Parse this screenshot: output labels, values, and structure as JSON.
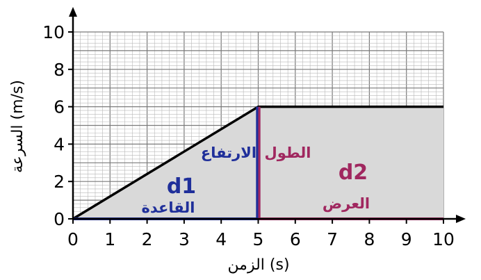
{
  "chart_data": {
    "type": "area",
    "xlabel": "الزمن (s)",
    "ylabel": "السرعة (m/s)",
    "xlim": [
      0,
      10
    ],
    "ylim": [
      0,
      10
    ],
    "x_ticks": [
      "0",
      "1",
      "2",
      "3",
      "4",
      "5",
      "6",
      "7",
      "8",
      "9",
      "10"
    ],
    "y_ticks": [
      "0",
      "2",
      "4",
      "6",
      "8",
      "10"
    ],
    "grid": true,
    "series": [
      {
        "x": [
          0,
          5,
          10
        ],
        "y": [
          0,
          6,
          6
        ],
        "color": "#000000"
      }
    ],
    "regions": [
      {
        "label": "d1",
        "x": [
          0,
          5
        ],
        "fill": "#d9d9d9",
        "color": "#1f2f9a",
        "base_label": "القاعدة",
        "height_label": "الارتفاع"
      },
      {
        "label": "d2",
        "x": [
          5,
          10
        ],
        "fill": "#d9d9d9",
        "color": "#a0275f",
        "base_label": "العرض",
        "height_label": "الطول"
      }
    ]
  }
}
